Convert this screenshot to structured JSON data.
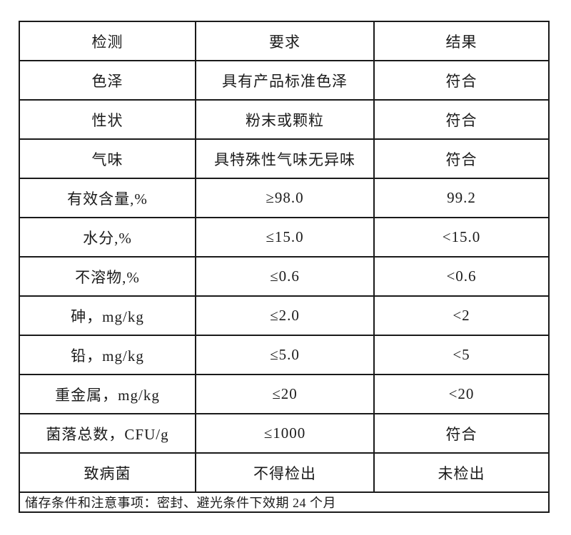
{
  "table": {
    "headers": [
      "检测",
      "要求",
      "结果"
    ],
    "rows": [
      [
        "色泽",
        "具有产品标准色泽",
        "符合"
      ],
      [
        "性状",
        "粉末或颗粒",
        "符合"
      ],
      [
        "气味",
        "具特殊性气味无异味",
        "符合"
      ],
      [
        "有效含量,%",
        "≥98.0",
        "99.2"
      ],
      [
        "水分,%",
        "≤15.0",
        "<15.0"
      ],
      [
        "不溶物,%",
        "≤0.6",
        "<0.6"
      ],
      [
        "砷，mg/kg",
        "≤2.0",
        "<2"
      ],
      [
        "铅，mg/kg",
        "≤5.0",
        "<5"
      ],
      [
        "重金属，mg/kg",
        "≤20",
        "<20"
      ],
      [
        "菌落总数，CFU/g",
        "≤1000",
        "符合"
      ],
      [
        "致病菌",
        "不得检出",
        "未检出"
      ]
    ],
    "footer": "储存条件和注意事项：密封、避光条件下效期 24 个月"
  },
  "colors": {
    "border": "#1a1a1a",
    "text": "#1b1b1b",
    "background": "#ffffff"
  }
}
